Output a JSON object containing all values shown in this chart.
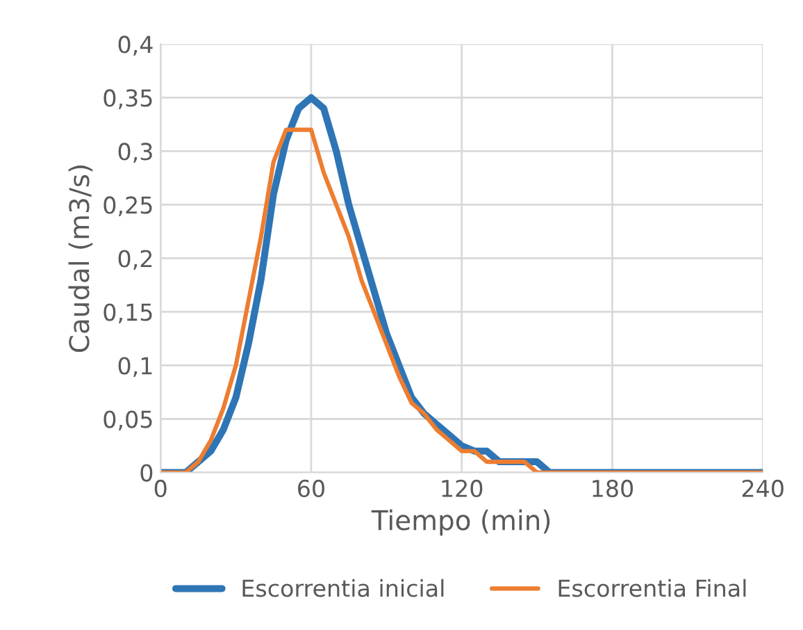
{
  "chart_data": {
    "type": "line",
    "xlabel": "Tiempo (min)",
    "ylabel": "Caudal (m3/s)",
    "x": [
      0,
      5,
      10,
      15,
      20,
      25,
      30,
      35,
      40,
      45,
      50,
      55,
      60,
      65,
      70,
      75,
      80,
      85,
      90,
      95,
      100,
      105,
      110,
      115,
      120,
      125,
      130,
      135,
      140,
      145,
      150,
      155,
      160,
      170,
      180,
      190,
      200,
      210,
      220,
      230,
      240
    ],
    "series": [
      {
        "name": "Escorrentia inicial",
        "color": "#2e75b6",
        "values": [
          0,
          0,
          0,
          0.01,
          0.02,
          0.04,
          0.07,
          0.12,
          0.18,
          0.26,
          0.31,
          0.34,
          0.35,
          0.34,
          0.3,
          0.25,
          0.21,
          0.17,
          0.13,
          0.1,
          0.07,
          0.055,
          0.045,
          0.035,
          0.025,
          0.02,
          0.02,
          0.01,
          0.01,
          0.01,
          0.01,
          0,
          0,
          0,
          0,
          0,
          0,
          0,
          0,
          0,
          0
        ]
      },
      {
        "name": "Escorrentia Final",
        "color": "#ed7d31",
        "values": [
          0,
          0,
          0,
          0.01,
          0.03,
          0.06,
          0.1,
          0.16,
          0.22,
          0.29,
          0.32,
          0.32,
          0.32,
          0.28,
          0.25,
          0.22,
          0.18,
          0.15,
          0.12,
          0.09,
          0.065,
          0.055,
          0.04,
          0.03,
          0.02,
          0.02,
          0.01,
          0.01,
          0.01,
          0.01,
          0,
          0,
          0,
          0,
          0,
          0,
          0,
          0,
          0,
          0,
          0
        ]
      }
    ],
    "xlim": [
      0,
      240
    ],
    "xticks": [
      0,
      60,
      120,
      180,
      240
    ],
    "ylim": [
      0,
      0.4
    ],
    "yticks": [
      {
        "value": 0,
        "label": "0"
      },
      {
        "value": 0.05,
        "label": "0,05"
      },
      {
        "value": 0.1,
        "label": "0,1"
      },
      {
        "value": 0.15,
        "label": "0,15"
      },
      {
        "value": 0.2,
        "label": "0,2"
      },
      {
        "value": 0.25,
        "label": "0,25"
      },
      {
        "value": 0.3,
        "label": "0,3"
      },
      {
        "value": 0.35,
        "label": "0,35"
      },
      {
        "value": 0.4,
        "label": "0,4"
      }
    ],
    "grid": true,
    "legend": "bottom",
    "line_style": "solid",
    "marker": "none"
  }
}
